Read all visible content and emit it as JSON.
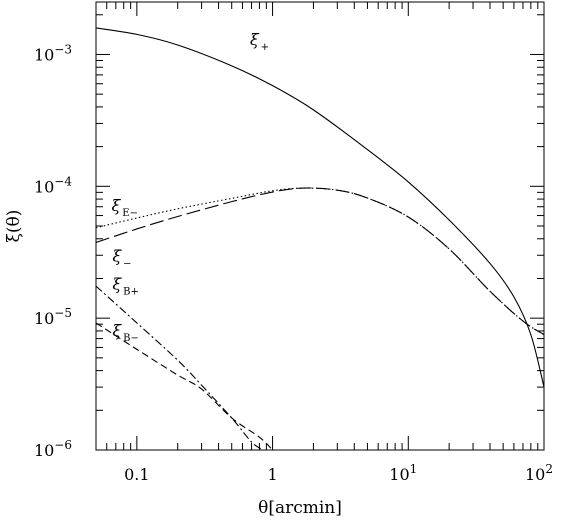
{
  "chart_data": {
    "type": "line",
    "title": "",
    "xlabel": "θ[arcmin]",
    "ylabel": "ξ(θ)",
    "xscale": "log",
    "yscale": "log",
    "xlim": [
      0.05,
      100
    ],
    "ylim": [
      1e-06,
      0.0025
    ],
    "grid": false,
    "x_ticks": [
      {
        "value": 0.1,
        "label": "0.1"
      },
      {
        "value": 1,
        "label": "1"
      },
      {
        "value": 10,
        "label": "10",
        "exponent": "1"
      },
      {
        "value": 100,
        "label": "10",
        "exponent": "2"
      }
    ],
    "y_ticks": [
      {
        "value": 1e-06,
        "label": "10",
        "exponent": "−6"
      },
      {
        "value": 1e-05,
        "label": "10",
        "exponent": "−5"
      },
      {
        "value": 0.0001,
        "label": "10",
        "exponent": "−4"
      },
      {
        "value": 0.001,
        "label": "10",
        "exponent": "−3"
      }
    ],
    "series": [
      {
        "name": "ξ+",
        "label_main": "ξ",
        "label_sub": "+",
        "style": "solid",
        "label_at": {
          "x": 0.68,
          "y": 0.00118
        },
        "points": [
          [
            0.05,
            0.00159
          ],
          [
            0.1,
            0.00142
          ],
          [
            0.2,
            0.00118
          ],
          [
            0.5,
            0.00082
          ],
          [
            1,
            0.00058
          ],
          [
            2,
            0.00038
          ],
          [
            5,
            0.00019
          ],
          [
            10,
            0.000108
          ],
          [
            20,
            5.55e-05
          ],
          [
            40,
            2.6e-05
          ],
          [
            60,
            1.45e-05
          ],
          [
            80,
            7.5e-06
          ],
          [
            100,
            3e-06
          ]
        ]
      },
      {
        "name": "ξE−",
        "label_main": "ξ",
        "label_sub": "E−",
        "style": "dotted",
        "label_at": {
          "x": 0.065,
          "y": 6.5e-05
        },
        "points": [
          [
            0.05,
            4.85e-05
          ],
          [
            0.1,
            5.75e-05
          ],
          [
            0.2,
            6.75e-05
          ],
          [
            0.5,
            8.1e-05
          ],
          [
            1,
            9.25e-05
          ],
          [
            1.7,
            9.7e-05
          ],
          [
            3,
            9.35e-05
          ],
          [
            5,
            8.15e-05
          ],
          [
            10,
            5.85e-05
          ],
          [
            20,
            3.35e-05
          ],
          [
            40,
            1.6e-05
          ],
          [
            70,
            9.5e-06
          ],
          [
            100,
            7.5e-06
          ]
        ]
      },
      {
        "name": "ξ−",
        "label_main": "ξ",
        "label_sub": "−",
        "style": "long-dash",
        "label_at": {
          "x": 0.066,
          "y": 2.7e-05
        },
        "points": [
          [
            0.05,
            3.75e-05
          ],
          [
            0.1,
            4.75e-05
          ],
          [
            0.2,
            5.9e-05
          ],
          [
            0.5,
            7.65e-05
          ],
          [
            1,
            9.05e-05
          ],
          [
            1.7,
            9.7e-05
          ],
          [
            3,
            9.35e-05
          ],
          [
            5,
            8.15e-05
          ],
          [
            10,
            5.85e-05
          ],
          [
            20,
            3.35e-05
          ],
          [
            40,
            1.6e-05
          ],
          [
            70,
            9.5e-06
          ],
          [
            100,
            7.5e-06
          ]
        ]
      },
      {
        "name": "ξB+",
        "label_main": "ξ",
        "label_sub": "B+",
        "style": "dash-dot",
        "label_at": {
          "x": 0.066,
          "y": 1.65e-05
        },
        "points": [
          [
            0.05,
            1.75e-05
          ],
          [
            0.1,
            9.2e-06
          ],
          [
            0.2,
            4.8e-06
          ],
          [
            0.3,
            3.1e-06
          ],
          [
            0.5,
            1.75e-06
          ],
          [
            0.7,
            1.15e-06
          ],
          [
            0.85,
            1e-06
          ]
        ]
      },
      {
        "name": "ξB−",
        "label_main": "ξ",
        "label_sub": "B−",
        "style": "short-dash",
        "label_at": {
          "x": 0.066,
          "y": 7.3e-06
        },
        "points": [
          [
            0.05,
            9.2e-06
          ],
          [
            0.1,
            5.8e-06
          ],
          [
            0.2,
            3.7e-06
          ],
          [
            0.3,
            2.9e-06
          ],
          [
            0.5,
            1.75e-06
          ],
          [
            0.8,
            1.25e-06
          ],
          [
            1,
            1e-06
          ]
        ]
      }
    ]
  }
}
